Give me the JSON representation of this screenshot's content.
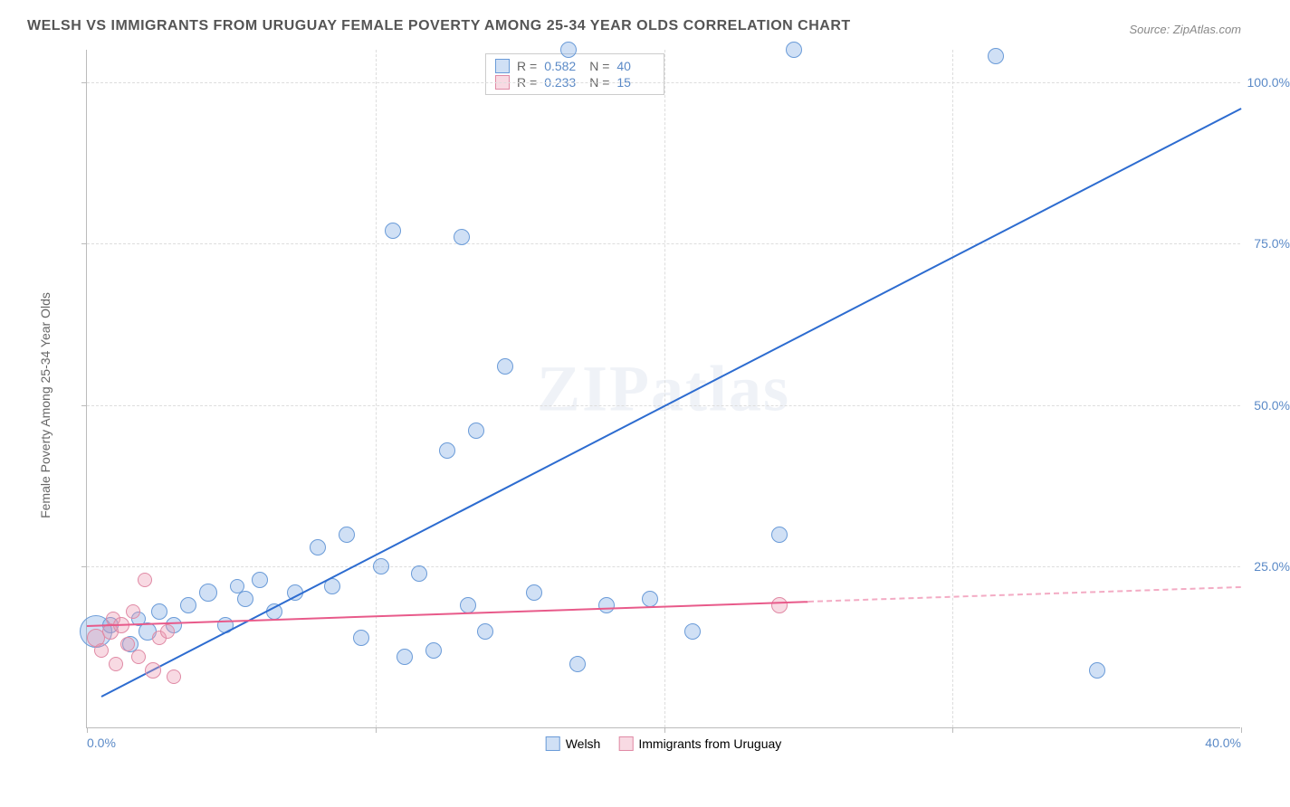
{
  "title": "WELSH VS IMMIGRANTS FROM URUGUAY FEMALE POVERTY AMONG 25-34 YEAR OLDS CORRELATION CHART",
  "source": "Source: ZipAtlas.com",
  "watermark": "ZIPatlas",
  "chart": {
    "type": "scatter",
    "ylabel": "Female Poverty Among 25-34 Year Olds",
    "xlim": [
      0,
      40
    ],
    "ylim": [
      0,
      105
    ],
    "xtick_step": 10,
    "ytick_step": 25,
    "xtick_labels": [
      "0.0%",
      "",
      "",
      "",
      "40.0%"
    ],
    "ytick_labels": [
      "",
      "25.0%",
      "50.0%",
      "75.0%",
      "100.0%"
    ],
    "background_color": "#ffffff",
    "grid_color": "#dddddd",
    "axis_color": "#bbbbbb",
    "label_color": "#5b8ac7",
    "series": [
      {
        "name": "Welsh",
        "color_fill": "rgba(120,165,225,0.35)",
        "color_stroke": "#6a9bd8",
        "trend_color": "#2d6cd0",
        "stats": {
          "R": "0.582",
          "N": "40"
        },
        "trend": {
          "x1": 0.5,
          "y1": 5,
          "x2": 40,
          "y2": 96,
          "solid_until_x": 40
        },
        "points": [
          {
            "x": 0.3,
            "y": 15,
            "r": 18
          },
          {
            "x": 0.8,
            "y": 16,
            "r": 9
          },
          {
            "x": 1.5,
            "y": 13,
            "r": 9
          },
          {
            "x": 1.8,
            "y": 17,
            "r": 8
          },
          {
            "x": 2.1,
            "y": 15,
            "r": 10
          },
          {
            "x": 2.5,
            "y": 18,
            "r": 9
          },
          {
            "x": 3.0,
            "y": 16,
            "r": 9
          },
          {
            "x": 3.5,
            "y": 19,
            "r": 9
          },
          {
            "x": 4.2,
            "y": 21,
            "r": 10
          },
          {
            "x": 4.8,
            "y": 16,
            "r": 9
          },
          {
            "x": 5.2,
            "y": 22,
            "r": 8
          },
          {
            "x": 5.5,
            "y": 20,
            "r": 9
          },
          {
            "x": 6.0,
            "y": 23,
            "r": 9
          },
          {
            "x": 6.5,
            "y": 18,
            "r": 9
          },
          {
            "x": 7.2,
            "y": 21,
            "r": 9
          },
          {
            "x": 8.0,
            "y": 28,
            "r": 9
          },
          {
            "x": 8.5,
            "y": 22,
            "r": 9
          },
          {
            "x": 9.0,
            "y": 30,
            "r": 9
          },
          {
            "x": 9.5,
            "y": 14,
            "r": 9
          },
          {
            "x": 10.2,
            "y": 25,
            "r": 9
          },
          {
            "x": 10.6,
            "y": 77,
            "r": 9
          },
          {
            "x": 11.0,
            "y": 11,
            "r": 9
          },
          {
            "x": 11.5,
            "y": 24,
            "r": 9
          },
          {
            "x": 12.0,
            "y": 12,
            "r": 9
          },
          {
            "x": 12.5,
            "y": 43,
            "r": 9
          },
          {
            "x": 13.0,
            "y": 76,
            "r": 9
          },
          {
            "x": 13.2,
            "y": 19,
            "r": 9
          },
          {
            "x": 13.5,
            "y": 46,
            "r": 9
          },
          {
            "x": 13.8,
            "y": 15,
            "r": 9
          },
          {
            "x": 14.5,
            "y": 56,
            "r": 9
          },
          {
            "x": 15.5,
            "y": 21,
            "r": 9
          },
          {
            "x": 16.7,
            "y": 105,
            "r": 9
          },
          {
            "x": 17.0,
            "y": 10,
            "r": 9
          },
          {
            "x": 18.0,
            "y": 19,
            "r": 9
          },
          {
            "x": 19.5,
            "y": 20,
            "r": 9
          },
          {
            "x": 21.0,
            "y": 15,
            "r": 9
          },
          {
            "x": 24.0,
            "y": 30,
            "r": 9
          },
          {
            "x": 24.5,
            "y": 105,
            "r": 9
          },
          {
            "x": 31.5,
            "y": 104,
            "r": 9
          },
          {
            "x": 35.0,
            "y": 9,
            "r": 9
          }
        ]
      },
      {
        "name": "Immigrants from Uruguay",
        "color_fill": "rgba(235,150,175,0.35)",
        "color_stroke": "#e08aa5",
        "trend_color": "#e85a8a",
        "stats": {
          "R": "0.233",
          "N": "15"
        },
        "trend": {
          "x1": 0,
          "y1": 16,
          "x2": 40,
          "y2": 22,
          "solid_until_x": 25
        },
        "points": [
          {
            "x": 0.3,
            "y": 14,
            "r": 10
          },
          {
            "x": 0.5,
            "y": 12,
            "r": 8
          },
          {
            "x": 0.8,
            "y": 15,
            "r": 9
          },
          {
            "x": 0.9,
            "y": 17,
            "r": 8
          },
          {
            "x": 1.0,
            "y": 10,
            "r": 8
          },
          {
            "x": 1.2,
            "y": 16,
            "r": 9
          },
          {
            "x": 1.4,
            "y": 13,
            "r": 8
          },
          {
            "x": 1.6,
            "y": 18,
            "r": 8
          },
          {
            "x": 1.8,
            "y": 11,
            "r": 8
          },
          {
            "x": 2.0,
            "y": 23,
            "r": 8
          },
          {
            "x": 2.3,
            "y": 9,
            "r": 9
          },
          {
            "x": 2.5,
            "y": 14,
            "r": 8
          },
          {
            "x": 2.8,
            "y": 15,
            "r": 8
          },
          {
            "x": 3.0,
            "y": 8,
            "r": 8
          },
          {
            "x": 24.0,
            "y": 19,
            "r": 9
          }
        ]
      }
    ]
  },
  "legend": {
    "items": [
      "Welsh",
      "Immigrants from Uruguay"
    ]
  }
}
